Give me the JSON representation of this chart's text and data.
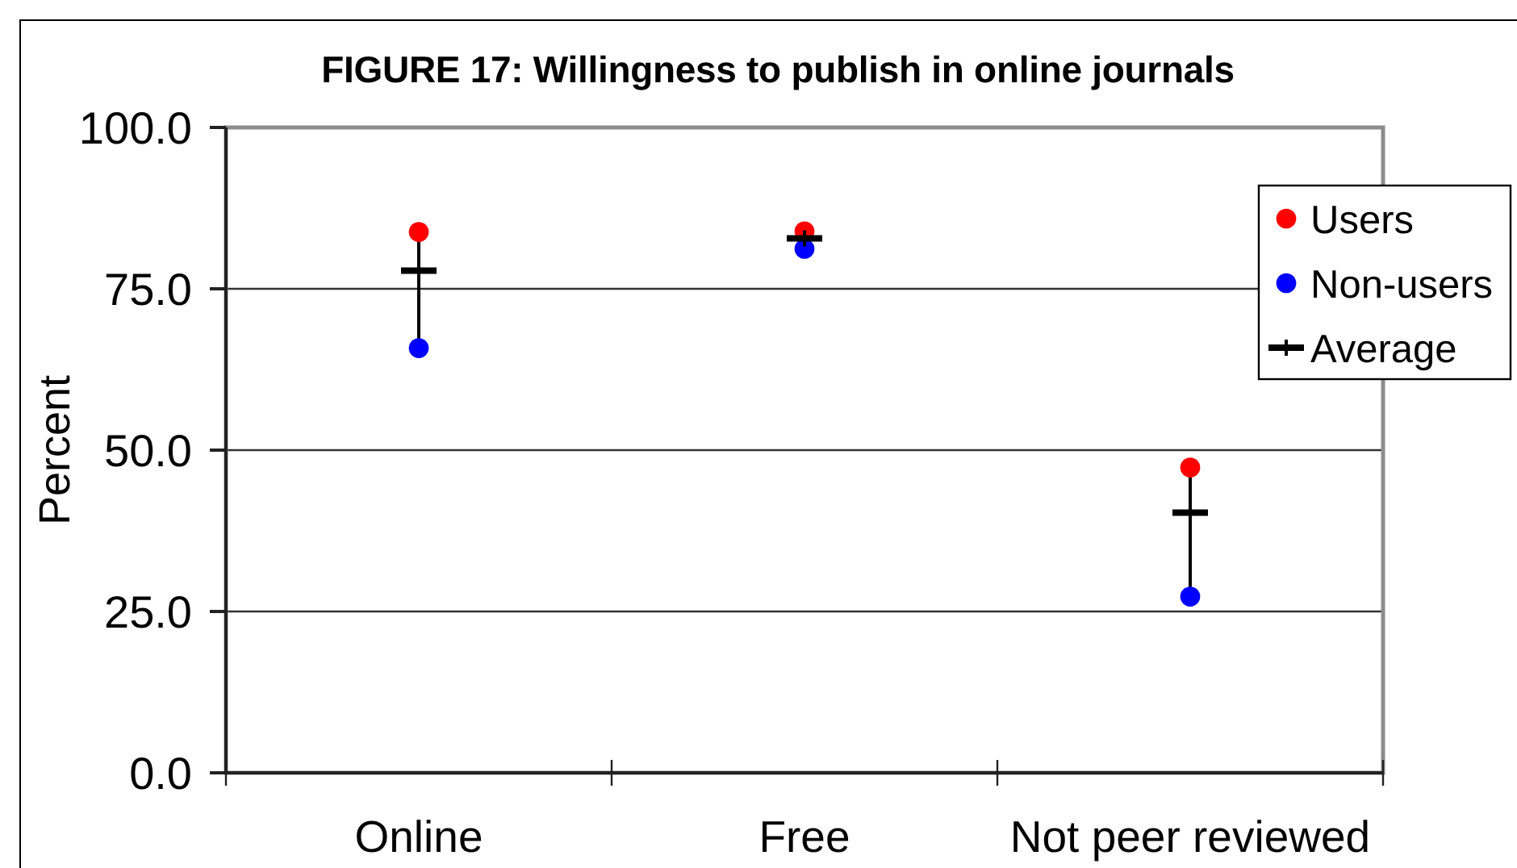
{
  "chart_data": {
    "type": "scatter",
    "title": "FIGURE 17: Willingness to publish in online journals",
    "ylabel": "Percent",
    "categories": [
      "Online",
      "Free",
      "Not peer reviewed"
    ],
    "series": [
      {
        "name": "Users",
        "color": "#ff0000",
        "values": [
          83.8,
          83.9,
          47.3
        ],
        "marker": "circle"
      },
      {
        "name": "Non-users",
        "color": "#0000ff",
        "values": [
          65.8,
          81.2,
          27.3
        ],
        "marker": "circle"
      },
      {
        "name": "Average",
        "color": "#000000",
        "values": [
          77.8,
          82.8,
          40.3
        ],
        "marker": "cross"
      }
    ],
    "ylim": [
      0,
      100
    ],
    "yticks": [
      {
        "value": 0,
        "label": "0.0"
      },
      {
        "value": 25,
        "label": "25.0"
      },
      {
        "value": 50,
        "label": "50.0"
      },
      {
        "value": 75,
        "label": "75.0"
      },
      {
        "value": 100,
        "label": "100.0"
      }
    ],
    "grid": "y",
    "legend": "right"
  }
}
